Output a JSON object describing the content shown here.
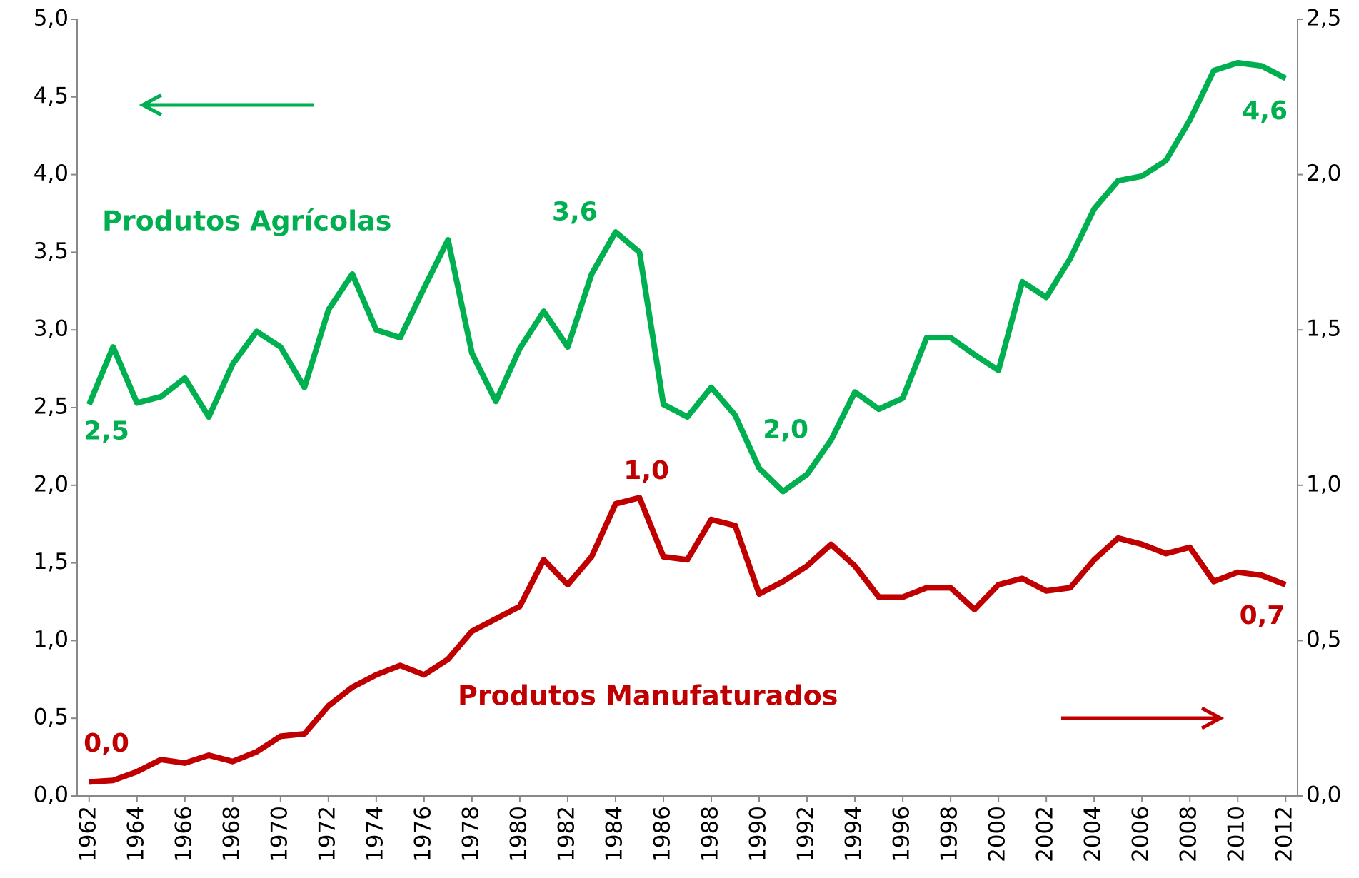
{
  "chart_data": {
    "type": "line",
    "x": [
      1962,
      1963,
      1964,
      1965,
      1966,
      1967,
      1968,
      1969,
      1970,
      1971,
      1972,
      1973,
      1974,
      1975,
      1976,
      1977,
      1978,
      1979,
      1980,
      1981,
      1982,
      1983,
      1984,
      1985,
      1986,
      1987,
      1988,
      1989,
      1990,
      1991,
      1992,
      1993,
      1994,
      1995,
      1996,
      1997,
      1998,
      1999,
      2000,
      2001,
      2002,
      2003,
      2004,
      2005,
      2006,
      2007,
      2008,
      2009,
      2010,
      2011,
      2012
    ],
    "xlim": [
      1961.5,
      2012.5
    ],
    "xticks": [
      1962,
      1964,
      1966,
      1968,
      1970,
      1972,
      1974,
      1976,
      1978,
      1980,
      1982,
      1984,
      1986,
      1988,
      1990,
      1992,
      1994,
      1996,
      1998,
      2000,
      2002,
      2004,
      2006,
      2008,
      2010,
      2012
    ],
    "ylim": [
      0,
      5
    ],
    "yticks": [
      {
        "value": 0,
        "label": "0,0"
      },
      {
        "value": 0.5,
        "label": "0,5"
      },
      {
        "value": 1,
        "label": "1,0"
      },
      {
        "value": 1.5,
        "label": "1,5"
      },
      {
        "value": 2,
        "label": "2,0"
      },
      {
        "value": 2.5,
        "label": "2,5"
      },
      {
        "value": 3,
        "label": "3,0"
      },
      {
        "value": 3.5,
        "label": "3,5"
      },
      {
        "value": 4,
        "label": "4,0"
      },
      {
        "value": 4.5,
        "label": "4,5"
      },
      {
        "value": 5,
        "label": "5,0"
      }
    ],
    "y2lim": [
      0,
      2.5
    ],
    "y2ticks": [
      {
        "value": 0,
        "label": "0,0"
      },
      {
        "value": 0.5,
        "label": "0,5"
      },
      {
        "value": 1,
        "label": "1,0"
      },
      {
        "value": 1.5,
        "label": "1,5"
      },
      {
        "value": 2,
        "label": "2,0"
      },
      {
        "value": 2.5,
        "label": "2,5"
      }
    ],
    "series": [
      {
        "name": "Produtos Agrícolas",
        "color": "#00b050",
        "axis": "y",
        "values": [
          2.52,
          2.89,
          2.53,
          2.57,
          2.69,
          2.44,
          2.78,
          2.99,
          2.89,
          2.63,
          3.13,
          3.36,
          3.0,
          2.95,
          3.27,
          3.58,
          2.85,
          2.54,
          2.88,
          3.12,
          2.89,
          3.36,
          3.63,
          3.5,
          2.52,
          2.44,
          2.63,
          2.45,
          2.11,
          1.96,
          2.07,
          2.29,
          2.6,
          2.49,
          2.56,
          2.95,
          2.95,
          2.84,
          2.74,
          3.31,
          3.21,
          3.46,
          3.78,
          3.96,
          3.99,
          4.09,
          4.35,
          4.67,
          4.72,
          4.7,
          4.62
        ],
        "value_labels": [
          "2,5",
          null,
          null,
          null,
          null,
          null,
          null,
          null,
          null,
          null,
          null,
          null,
          null,
          null,
          null,
          null,
          null,
          null,
          null,
          null,
          null,
          null,
          "3,6",
          null,
          null,
          null,
          null,
          null,
          null,
          "2,0",
          null,
          null,
          null,
          null,
          null,
          null,
          null,
          null,
          null,
          null,
          null,
          null,
          null,
          null,
          null,
          null,
          null,
          null,
          null,
          null,
          "4,6"
        ]
      },
      {
        "name": "Produtos Manufaturados",
        "color": "#c00000",
        "axis": "y2",
        "values": [
          0.045,
          0.05,
          0.078,
          0.117,
          0.106,
          0.131,
          0.111,
          0.142,
          0.192,
          0.2,
          0.29,
          0.35,
          0.39,
          0.42,
          0.39,
          0.44,
          0.53,
          0.57,
          0.61,
          0.76,
          0.68,
          0.77,
          0.94,
          0.96,
          0.77,
          0.76,
          0.89,
          0.87,
          0.65,
          0.69,
          0.74,
          0.81,
          0.74,
          0.64,
          0.64,
          0.67,
          0.67,
          0.6,
          0.68,
          0.7,
          0.66,
          0.67,
          0.76,
          0.83,
          0.81,
          0.78,
          0.8,
          0.69,
          0.72,
          0.71,
          0.68
        ],
        "value_labels": [
          "0,0",
          null,
          null,
          null,
          null,
          null,
          null,
          null,
          null,
          null,
          null,
          null,
          null,
          null,
          null,
          null,
          null,
          null,
          null,
          null,
          null,
          null,
          null,
          "1,0",
          null,
          null,
          null,
          null,
          null,
          null,
          null,
          null,
          null,
          null,
          null,
          null,
          null,
          null,
          null,
          null,
          null,
          null,
          null,
          null,
          null,
          null,
          null,
          null,
          null,
          null,
          "0,7"
        ]
      }
    ]
  }
}
